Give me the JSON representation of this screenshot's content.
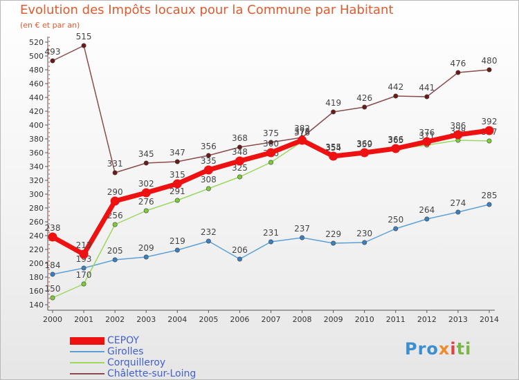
{
  "title": "Evolution des Impôts locaux pour la Commune par Habitant",
  "subtitle": "(en € et par an)",
  "logo": {
    "part1": "Pro",
    "part2": "x",
    "part3": "i",
    "part4": "ti"
  },
  "chart_data": {
    "type": "line",
    "x": [
      2000,
      2001,
      2002,
      2003,
      2004,
      2005,
      2006,
      2007,
      2008,
      2009,
      2010,
      2011,
      2012,
      2013,
      2014
    ],
    "ylim": [
      140,
      520
    ],
    "yticks": [
      140,
      160,
      180,
      200,
      220,
      240,
      260,
      280,
      300,
      320,
      340,
      360,
      380,
      400,
      420,
      440,
      460,
      480,
      500,
      520
    ],
    "grid": false,
    "legend_position": "bottom-left",
    "series": [
      {
        "name": "Châlette-sur-Loing",
        "color": "#6b1a1a",
        "line_color": "#8a4a4a",
        "values": [
          493,
          515,
          331,
          345,
          347,
          356,
          368,
          375,
          382,
          419,
          426,
          442,
          441,
          476,
          480
        ]
      },
      {
        "name": "Girolles",
        "color": "#3a7fc0",
        "line_color": "#5aa0d8",
        "values": [
          184,
          193,
          205,
          209,
          219,
          232,
          206,
          231,
          237,
          229,
          230,
          250,
          264,
          274,
          285
        ]
      },
      {
        "name": "Corquilleroy",
        "color": "#7ccc38",
        "line_color": "#9ad860",
        "values": [
          150,
          170,
          256,
          276,
          291,
          308,
          325,
          346,
          376,
          354,
          359,
          365,
          371,
          378,
          377
        ]
      },
      {
        "name": "CEPOY",
        "color": "#ee1111",
        "line_color": "#ee1111",
        "values": [
          238,
          213,
          290,
          302,
          315,
          335,
          348,
          360,
          378,
          355,
          360,
          366,
          376,
          386,
          392
        ]
      }
    ],
    "legend": [
      "CEPOY",
      "Girolles",
      "Corquilleroy",
      "Châlette-sur-Loing"
    ]
  }
}
